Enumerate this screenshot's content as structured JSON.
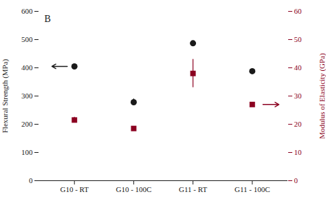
{
  "chart_data": {
    "type": "scatter",
    "categories": [
      "G10 - RT",
      "G10 - 100C",
      "G11 - RT",
      "G11 - 100C"
    ],
    "series": [
      {
        "values": [
          405,
          278,
          487,
          388
        ],
        "errors": [
          4,
          12,
          4,
          6
        ],
        "color": "#1a1a1a",
        "marker": "circle",
        "axis": "y"
      },
      {
        "values": [
          21.5,
          18.5,
          38.0,
          27.0
        ],
        "errors": [
          1.0,
          0.3,
          5.0,
          0.5
        ],
        "color": "#8B0020",
        "marker": "square",
        "axis": "y2"
      }
    ],
    "ylabel": "Flexural Strength (MPa)",
    "y2label": "Modulus of Elasticity (GPa)",
    "ylim": [
      0,
      600
    ],
    "yticks": [
      0,
      100,
      200,
      300,
      400,
      500,
      600
    ],
    "y2lim": [
      0,
      60
    ],
    "y2ticks": [
      0,
      10,
      20,
      30,
      40,
      50,
      60
    ],
    "annotations": [
      {
        "text": "B"
      },
      {
        "arrow": "left",
        "y": 405,
        "axis": "y",
        "color": "#1a1a1a"
      },
      {
        "arrow": "right",
        "y": 27.0,
        "axis": "y2",
        "color": "#8B0020"
      }
    ],
    "grid": false
  }
}
